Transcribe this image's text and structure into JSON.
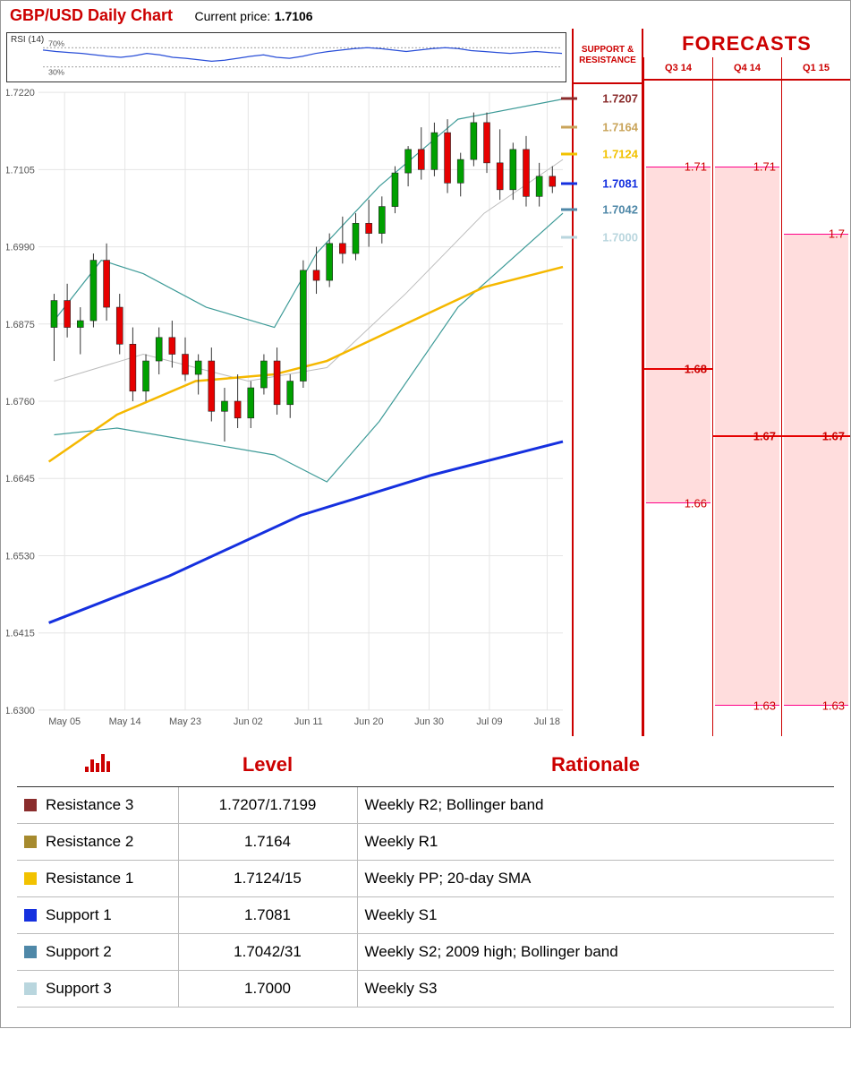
{
  "header": {
    "title": "GBP/USD Daily Chart",
    "price_label": "Current price:",
    "price_value": "1.7106"
  },
  "colors": {
    "title": "#c00000",
    "border": "#c00000",
    "grid": "#e5e5e5",
    "axis_text": "#555555",
    "candle_up": "#00a000",
    "candle_dn": "#e60000",
    "ma_yellow": "#f5b800",
    "ma_blue": "#1530df",
    "bb": "#3e9b98",
    "rsi": "#2a4fd8",
    "forecast_fill": "rgba(255,180,180,0.45)"
  },
  "rsi": {
    "label": "RSI (14)",
    "upper": "70%",
    "lower": "30%",
    "y_lo": 0,
    "y_hi": 100,
    "points": [
      65,
      62,
      60,
      58,
      55,
      52,
      50,
      53,
      58,
      55,
      50,
      48,
      45,
      42,
      44,
      48,
      52,
      55,
      50,
      48,
      52,
      58,
      62,
      65,
      68,
      70,
      68,
      65,
      62,
      65,
      68,
      70,
      68,
      64,
      62,
      60,
      58,
      60,
      62,
      60,
      58
    ]
  },
  "chart": {
    "y_min": 1.63,
    "y_max": 1.722,
    "y_ticks": [
      1.63,
      1.6415,
      1.653,
      1.6645,
      1.676,
      1.6875,
      1.699,
      1.7105,
      1.722
    ],
    "y_tick_labels": [
      "1.6300",
      "1.6415",
      "1.6530",
      "1.6645",
      "1.6760",
      "1.6875",
      "1.6990",
      "1.7105",
      "1.7220"
    ],
    "x_ticks": [
      "May 05",
      "May 14",
      "May 23",
      "Jun 02",
      "Jun 11",
      "Jun 20",
      "Jun 30",
      "Jul 09",
      "Jul 18"
    ],
    "x_tick_pos": [
      0.05,
      0.165,
      0.28,
      0.4,
      0.515,
      0.63,
      0.745,
      0.86,
      0.97
    ],
    "candles": [
      {
        "x": 0.03,
        "o": 1.687,
        "h": 1.692,
        "l": 1.682,
        "c": 1.691
      },
      {
        "x": 0.055,
        "o": 1.691,
        "h": 1.6935,
        "l": 1.6855,
        "c": 1.687
      },
      {
        "x": 0.08,
        "o": 1.687,
        "h": 1.69,
        "l": 1.683,
        "c": 1.688
      },
      {
        "x": 0.105,
        "o": 1.688,
        "h": 1.698,
        "l": 1.687,
        "c": 1.697
      },
      {
        "x": 0.13,
        "o": 1.697,
        "h": 1.6995,
        "l": 1.688,
        "c": 1.69
      },
      {
        "x": 0.155,
        "o": 1.69,
        "h": 1.692,
        "l": 1.683,
        "c": 1.6845
      },
      {
        "x": 0.18,
        "o": 1.6845,
        "h": 1.687,
        "l": 1.676,
        "c": 1.6775
      },
      {
        "x": 0.205,
        "o": 1.6775,
        "h": 1.683,
        "l": 1.676,
        "c": 1.682
      },
      {
        "x": 0.23,
        "o": 1.682,
        "h": 1.687,
        "l": 1.68,
        "c": 1.6855
      },
      {
        "x": 0.255,
        "o": 1.6855,
        "h": 1.688,
        "l": 1.681,
        "c": 1.683
      },
      {
        "x": 0.28,
        "o": 1.683,
        "h": 1.6855,
        "l": 1.679,
        "c": 1.68
      },
      {
        "x": 0.305,
        "o": 1.68,
        "h": 1.683,
        "l": 1.677,
        "c": 1.682
      },
      {
        "x": 0.33,
        "o": 1.682,
        "h": 1.684,
        "l": 1.673,
        "c": 1.6745
      },
      {
        "x": 0.355,
        "o": 1.6745,
        "h": 1.678,
        "l": 1.67,
        "c": 1.676
      },
      {
        "x": 0.38,
        "o": 1.676,
        "h": 1.68,
        "l": 1.672,
        "c": 1.6735
      },
      {
        "x": 0.405,
        "o": 1.6735,
        "h": 1.679,
        "l": 1.672,
        "c": 1.678
      },
      {
        "x": 0.43,
        "o": 1.678,
        "h": 1.683,
        "l": 1.677,
        "c": 1.682
      },
      {
        "x": 0.455,
        "o": 1.682,
        "h": 1.684,
        "l": 1.674,
        "c": 1.6755
      },
      {
        "x": 0.48,
        "o": 1.6755,
        "h": 1.68,
        "l": 1.6735,
        "c": 1.679
      },
      {
        "x": 0.505,
        "o": 1.679,
        "h": 1.697,
        "l": 1.678,
        "c": 1.6955
      },
      {
        "x": 0.53,
        "o": 1.6955,
        "h": 1.699,
        "l": 1.692,
        "c": 1.694
      },
      {
        "x": 0.555,
        "o": 1.694,
        "h": 1.701,
        "l": 1.693,
        "c": 1.6995
      },
      {
        "x": 0.58,
        "o": 1.6995,
        "h": 1.7035,
        "l": 1.6965,
        "c": 1.698
      },
      {
        "x": 0.605,
        "o": 1.698,
        "h": 1.704,
        "l": 1.697,
        "c": 1.7025
      },
      {
        "x": 0.63,
        "o": 1.7025,
        "h": 1.706,
        "l": 1.699,
        "c": 1.701
      },
      {
        "x": 0.655,
        "o": 1.701,
        "h": 1.7065,
        "l": 1.6995,
        "c": 1.705
      },
      {
        "x": 0.68,
        "o": 1.705,
        "h": 1.711,
        "l": 1.704,
        "c": 1.71
      },
      {
        "x": 0.705,
        "o": 1.71,
        "h": 1.714,
        "l": 1.708,
        "c": 1.7135
      },
      {
        "x": 0.73,
        "o": 1.7135,
        "h": 1.7168,
        "l": 1.709,
        "c": 1.7105
      },
      {
        "x": 0.755,
        "o": 1.7105,
        "h": 1.7175,
        "l": 1.7095,
        "c": 1.716
      },
      {
        "x": 0.78,
        "o": 1.716,
        "h": 1.718,
        "l": 1.707,
        "c": 1.7085
      },
      {
        "x": 0.805,
        "o": 1.7085,
        "h": 1.713,
        "l": 1.7065,
        "c": 1.712
      },
      {
        "x": 0.83,
        "o": 1.712,
        "h": 1.719,
        "l": 1.711,
        "c": 1.7175
      },
      {
        "x": 0.855,
        "o": 1.7175,
        "h": 1.719,
        "l": 1.71,
        "c": 1.7115
      },
      {
        "x": 0.88,
        "o": 1.7115,
        "h": 1.7165,
        "l": 1.706,
        "c": 1.7075
      },
      {
        "x": 0.905,
        "o": 1.7075,
        "h": 1.7145,
        "l": 1.706,
        "c": 1.7135
      },
      {
        "x": 0.93,
        "o": 1.7135,
        "h": 1.7155,
        "l": 1.705,
        "c": 1.7065
      },
      {
        "x": 0.955,
        "o": 1.7065,
        "h": 1.7115,
        "l": 1.705,
        "c": 1.7095
      },
      {
        "x": 0.98,
        "o": 1.7095,
        "h": 1.711,
        "l": 1.707,
        "c": 1.708
      }
    ],
    "lines": {
      "ma_yellow": [
        {
          "x": 0.02,
          "y": 1.667
        },
        {
          "x": 0.15,
          "y": 1.674
        },
        {
          "x": 0.3,
          "y": 1.679
        },
        {
          "x": 0.45,
          "y": 1.68
        },
        {
          "x": 0.55,
          "y": 1.682
        },
        {
          "x": 0.7,
          "y": 1.6875
        },
        {
          "x": 0.85,
          "y": 1.693
        },
        {
          "x": 1.0,
          "y": 1.696
        }
      ],
      "ma_blue": [
        {
          "x": 0.02,
          "y": 1.643
        },
        {
          "x": 0.25,
          "y": 1.65
        },
        {
          "x": 0.5,
          "y": 1.659
        },
        {
          "x": 0.75,
          "y": 1.665
        },
        {
          "x": 1.0,
          "y": 1.67
        }
      ],
      "bb_upper": [
        {
          "x": 0.03,
          "y": 1.688
        },
        {
          "x": 0.12,
          "y": 1.697
        },
        {
          "x": 0.2,
          "y": 1.695
        },
        {
          "x": 0.32,
          "y": 1.69
        },
        {
          "x": 0.45,
          "y": 1.687
        },
        {
          "x": 0.53,
          "y": 1.698
        },
        {
          "x": 0.65,
          "y": 1.708
        },
        {
          "x": 0.8,
          "y": 1.718
        },
        {
          "x": 1.0,
          "y": 1.721
        }
      ],
      "bb_lower": [
        {
          "x": 0.03,
          "y": 1.671
        },
        {
          "x": 0.15,
          "y": 1.672
        },
        {
          "x": 0.3,
          "y": 1.67
        },
        {
          "x": 0.45,
          "y": 1.668
        },
        {
          "x": 0.55,
          "y": 1.664
        },
        {
          "x": 0.65,
          "y": 1.673
        },
        {
          "x": 0.8,
          "y": 1.69
        },
        {
          "x": 1.0,
          "y": 1.704
        }
      ],
      "bb_mid": [
        {
          "x": 0.03,
          "y": 1.679
        },
        {
          "x": 0.2,
          "y": 1.683
        },
        {
          "x": 0.4,
          "y": 1.679
        },
        {
          "x": 0.55,
          "y": 1.681
        },
        {
          "x": 0.7,
          "y": 1.692
        },
        {
          "x": 0.85,
          "y": 1.704
        },
        {
          "x": 1.0,
          "y": 1.712
        }
      ]
    }
  },
  "sr": {
    "header_line1": "SUPPORT &",
    "header_line2": "RESISTANCE",
    "levels": [
      {
        "label": "1.7207",
        "value": 1.7207,
        "color": "#8a2c2c"
      },
      {
        "label": "1.7164",
        "value": 1.7164,
        "color": "#c9a45a"
      },
      {
        "label": "1.7124",
        "value": 1.7124,
        "color": "#f2c200"
      },
      {
        "label": "1.7081",
        "value": 1.7081,
        "color": "#1530df"
      },
      {
        "label": "1.7042",
        "value": 1.7042,
        "color": "#4f88a8"
      },
      {
        "label": "1.7000",
        "value": 1.7,
        "color": "#b9d6de"
      }
    ]
  },
  "forecasts": {
    "title": "FORECASTS",
    "periods": [
      "Q3 14",
      "Q4 14",
      "Q1 15"
    ],
    "ranges": [
      {
        "hi": 1.71,
        "lo": 1.66,
        "mid": 1.68,
        "hi_lbl": "1.71",
        "mid_lbl": "1.68",
        "lo_lbl": "1.66"
      },
      {
        "hi": 1.71,
        "lo": 1.63,
        "mid": 1.67,
        "hi_lbl": "1.71",
        "mid_lbl": "1.67",
        "lo_lbl": "1.63"
      },
      {
        "hi": 1.7,
        "lo": 1.63,
        "mid": 1.67,
        "hi_lbl": "1.7",
        "mid_lbl": "1.67",
        "lo_lbl": "1.63"
      }
    ]
  },
  "table": {
    "headers": [
      "",
      "Level",
      "Rationale"
    ],
    "rows": [
      {
        "sq": "#8a2c2c",
        "name": "Resistance 3",
        "level": "1.7207/1.7199",
        "rationale": "Weekly R2; Bollinger band"
      },
      {
        "sq": "#a68a2e",
        "name": "Resistance 2",
        "level": "1.7164",
        "rationale": "Weekly R1"
      },
      {
        "sq": "#f2c200",
        "name": "Resistance 1",
        "level": "1.7124/15",
        "rationale": "Weekly PP; 20-day SMA"
      },
      {
        "sq": "#1530df",
        "name": "Support 1",
        "level": "1.7081",
        "rationale": "Weekly S1"
      },
      {
        "sq": "#4f88a8",
        "name": "Support 2",
        "level": "1.7042/31",
        "rationale": "Weekly S2; 2009 high; Bollinger band"
      },
      {
        "sq": "#b9d6de",
        "name": "Support 3",
        "level": "1.7000",
        "rationale": "Weekly S3"
      }
    ]
  }
}
